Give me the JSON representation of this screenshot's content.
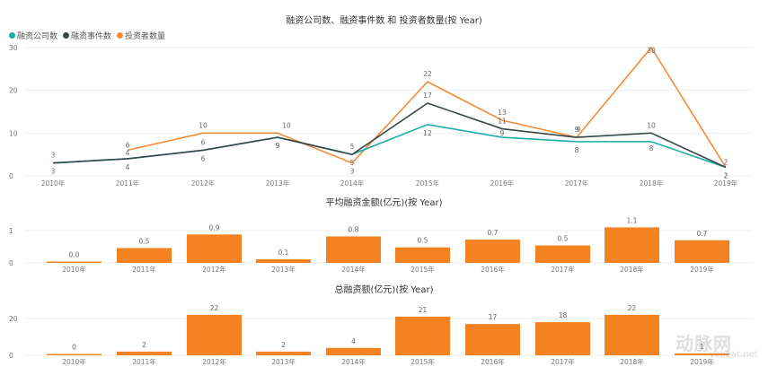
{
  "chart_data": [
    {
      "type": "line",
      "title": "融资公司数、融资事件数 和 投资者数量(按 Year)",
      "xlabel": "",
      "ylabel": "",
      "ylim": [
        0,
        30
      ],
      "yticks": [
        0,
        10,
        20,
        30
      ],
      "grid": true,
      "legend_position": "top-left",
      "categories": [
        "2010年",
        "2011年",
        "2012年",
        "2013年",
        "2014年",
        "2015年",
        "2016年",
        "2017年",
        "2018年",
        "2019年"
      ],
      "series": [
        {
          "name": "融资公司数",
          "color": "#1aada8",
          "values": [
            3,
            4,
            6,
            9,
            5,
            12,
            9,
            8,
            8,
            2
          ]
        },
        {
          "name": "融资事件数",
          "color": "#374649",
          "values": [
            3,
            4,
            6,
            9,
            5,
            17,
            11,
            9,
            10,
            2
          ]
        },
        {
          "name": "投资者数量",
          "color": "#f28c38",
          "values": [
            null,
            6,
            10,
            10,
            3,
            22,
            13,
            9,
            30,
            2
          ]
        }
      ]
    },
    {
      "type": "bar",
      "title": "平均融资金额(亿元)(按 Year)",
      "xlabel": "",
      "ylabel": "",
      "ylim": [
        0,
        1.2
      ],
      "yticks": [
        0,
        1
      ],
      "grid": true,
      "categories": [
        "2010年",
        "2011年",
        "2012年",
        "2013年",
        "2014年",
        "2015年",
        "2016年",
        "2017年",
        "2018年",
        "2019年"
      ],
      "values": [
        0.02,
        0.46,
        0.88,
        0.11,
        0.82,
        0.48,
        0.72,
        0.54,
        1.1,
        0.7
      ],
      "data_labels": [
        "0.0",
        "0.5",
        "0.9",
        "0.1",
        "0.8",
        "0.5",
        "0.7",
        "0.5",
        "1.1",
        "0.7"
      ],
      "color": "#f58220"
    },
    {
      "type": "bar",
      "title": "总融资额(亿元)(按 Year)",
      "xlabel": "",
      "ylabel": "",
      "ylim": [
        0,
        25
      ],
      "yticks": [
        0,
        20
      ],
      "grid": true,
      "categories": [
        "2010年",
        "2011年",
        "2012年",
        "2013年",
        "2014年",
        "2015年",
        "2016年",
        "2017年",
        "2018年",
        "2019年"
      ],
      "values": [
        0.3,
        2,
        22,
        2,
        4,
        21,
        17,
        18,
        22,
        1
      ],
      "data_labels": [
        "0",
        "2",
        "22",
        "2",
        "4",
        "21",
        "17",
        "18",
        "22",
        "1"
      ],
      "color": "#f58220"
    }
  ],
  "charts": {
    "line": {
      "title": "融资公司数、融资事件数 和 投资者数量(按 Year)",
      "legend": [
        {
          "label": "融资公司数",
          "color": "#1aada8"
        },
        {
          "label": "融资事件数",
          "color": "#374649"
        },
        {
          "label": "投资者数量",
          "color": "#f28c38"
        }
      ]
    },
    "bar_avg": {
      "title": "平均融资金额(亿元)(按 Year)"
    },
    "bar_total": {
      "title": "总融资额(亿元)(按 Year)"
    }
  },
  "watermark": {
    "text": "动脉网",
    "sub": "vcbeat.net"
  }
}
